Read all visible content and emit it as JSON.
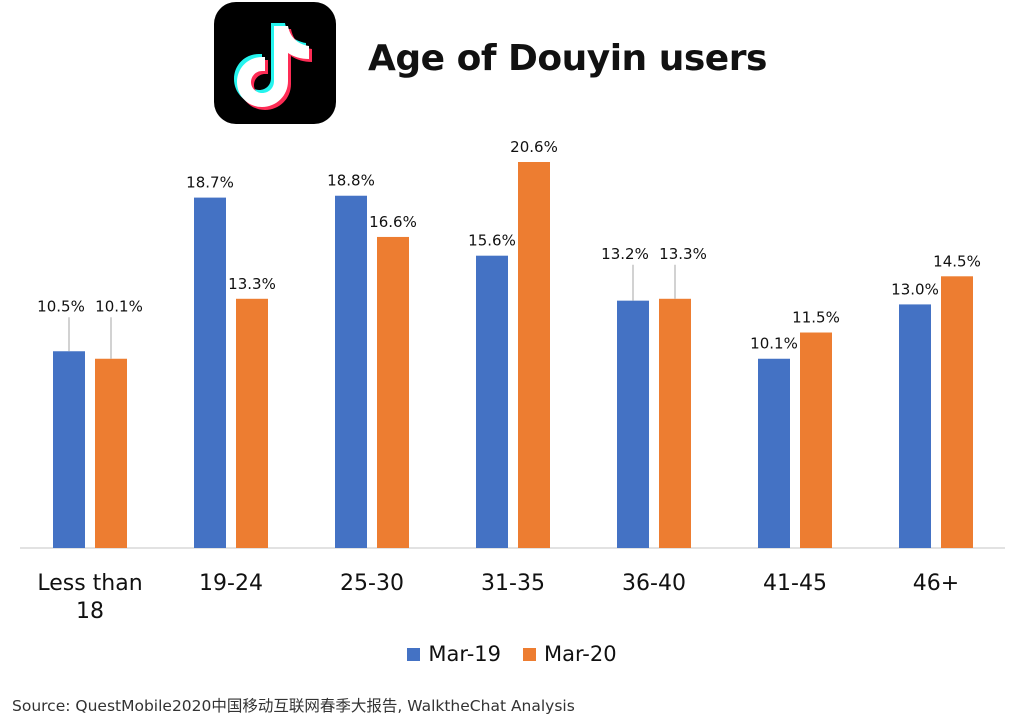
{
  "colors": {
    "mar19": "#4472C4",
    "mar20": "#ED7D31",
    "axis": "#D9D9D9"
  },
  "logo": {
    "icon": "tiktok-note-icon"
  },
  "source": "Source: QuestMobile2020中国移动互联网春季大报告, WalktheChat Analysis",
  "chart_data": {
    "type": "bar",
    "title": "Age of Douyin users",
    "categories": [
      "Less than 18",
      "19-24",
      "25-30",
      "31-35",
      "36-40",
      "41-45",
      "46+"
    ],
    "series": [
      {
        "name": "Mar-19",
        "values": [
          10.5,
          18.7,
          18.8,
          15.6,
          13.2,
          10.1,
          13.0
        ],
        "labels": [
          "10.5%",
          "18.7%",
          "18.8%",
          "15.6%",
          "13.2%",
          "10.1%",
          "13.0%"
        ]
      },
      {
        "name": "Mar-20",
        "values": [
          10.1,
          13.3,
          16.6,
          20.6,
          13.3,
          11.5,
          14.5
        ],
        "labels": [
          "10.1%",
          "13.3%",
          "16.6%",
          "20.6%",
          "13.3%",
          "11.5%",
          "14.5%"
        ]
      }
    ],
    "ylim": [
      0,
      20.6
    ],
    "xlabel": "",
    "ylabel": "",
    "grid": false,
    "legend": "bottom"
  }
}
